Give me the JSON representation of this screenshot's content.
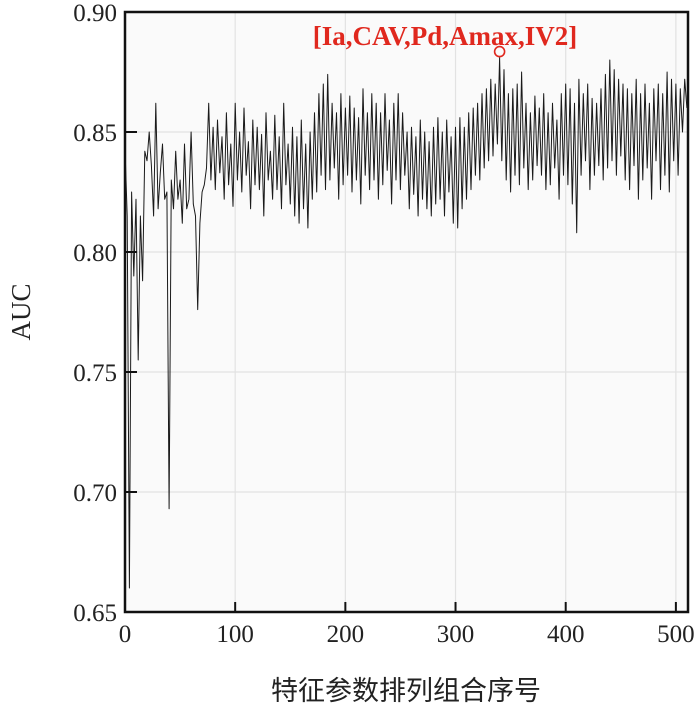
{
  "chart_data": {
    "type": "line",
    "title": "",
    "xlabel": "特征参数排列组合序号",
    "ylabel": "AUC",
    "xlim": [
      0,
      511
    ],
    "ylim": [
      0.65,
      0.9
    ],
    "xticks": [
      0,
      100,
      200,
      300,
      400,
      500
    ],
    "yticks": [
      0.65,
      0.7,
      0.75,
      0.8,
      0.85,
      0.9
    ],
    "ytick_labels": [
      "0.65",
      "0.70",
      "0.75",
      "0.80",
      "0.85",
      "0.90"
    ],
    "grid": true,
    "line_color": "#1a1a1a",
    "annotation": {
      "text": "[Ia,CAV,Pd,Amax,IV2]",
      "x": 340,
      "y": 0.881,
      "color": "#e0281e"
    },
    "series": [
      {
        "name": "AUC",
        "x_start": 0,
        "x_step": 2,
        "values": [
          0.843,
          0.815,
          0.66,
          0.825,
          0.79,
          0.822,
          0.755,
          0.815,
          0.788,
          0.842,
          0.838,
          0.85,
          0.836,
          0.815,
          0.862,
          0.818,
          0.833,
          0.845,
          0.822,
          0.825,
          0.693,
          0.83,
          0.818,
          0.842,
          0.822,
          0.83,
          0.812,
          0.845,
          0.818,
          0.822,
          0.85,
          0.82,
          0.815,
          0.776,
          0.812,
          0.825,
          0.828,
          0.835,
          0.862,
          0.83,
          0.852,
          0.826,
          0.855,
          0.833,
          0.848,
          0.822,
          0.858,
          0.828,
          0.845,
          0.819,
          0.862,
          0.83,
          0.85,
          0.825,
          0.86,
          0.832,
          0.846,
          0.818,
          0.855,
          0.828,
          0.852,
          0.826,
          0.849,
          0.815,
          0.858,
          0.83,
          0.842,
          0.822,
          0.857,
          0.826,
          0.848,
          0.818,
          0.862,
          0.828,
          0.845,
          0.82,
          0.852,
          0.815,
          0.848,
          0.812,
          0.855,
          0.818,
          0.845,
          0.81,
          0.85,
          0.822,
          0.858,
          0.825,
          0.866,
          0.832,
          0.87,
          0.826,
          0.874,
          0.83,
          0.862,
          0.835,
          0.858,
          0.822,
          0.866,
          0.828,
          0.86,
          0.832,
          0.865,
          0.825,
          0.86,
          0.83,
          0.856,
          0.82,
          0.868,
          0.832,
          0.858,
          0.826,
          0.866,
          0.83,
          0.862,
          0.822,
          0.858,
          0.828,
          0.866,
          0.834,
          0.855,
          0.82,
          0.862,
          0.83,
          0.866,
          0.826,
          0.858,
          0.832,
          0.85,
          0.818,
          0.852,
          0.824,
          0.848,
          0.815,
          0.855,
          0.822,
          0.85,
          0.818,
          0.846,
          0.815,
          0.852,
          0.82,
          0.856,
          0.822,
          0.85,
          0.815,
          0.855,
          0.825,
          0.848,
          0.812,
          0.852,
          0.81,
          0.856,
          0.818,
          0.852,
          0.822,
          0.858,
          0.826,
          0.86,
          0.832,
          0.862,
          0.83,
          0.866,
          0.835,
          0.868,
          0.838,
          0.872,
          0.84,
          0.87,
          0.845,
          0.881,
          0.838,
          0.876,
          0.83,
          0.866,
          0.825,
          0.868,
          0.832,
          0.87,
          0.828,
          0.875,
          0.835,
          0.862,
          0.826,
          0.858,
          0.83,
          0.865,
          0.836,
          0.86,
          0.832,
          0.866,
          0.826,
          0.858,
          0.828,
          0.862,
          0.835,
          0.855,
          0.822,
          0.866,
          0.832,
          0.87,
          0.828,
          0.868,
          0.82,
          0.862,
          0.808,
          0.872,
          0.832,
          0.866,
          0.838,
          0.87,
          0.826,
          0.864,
          0.832,
          0.862,
          0.836,
          0.868,
          0.83,
          0.874,
          0.835,
          0.88,
          0.838,
          0.876,
          0.832,
          0.872,
          0.84,
          0.87,
          0.83,
          0.868,
          0.826,
          0.866,
          0.836,
          0.872,
          0.822,
          0.866,
          0.83,
          0.87,
          0.835,
          0.862,
          0.822,
          0.868,
          0.838,
          0.87,
          0.826,
          0.866,
          0.832,
          0.875,
          0.825,
          0.872,
          0.838,
          0.87,
          0.832,
          0.868,
          0.85,
          0.872,
          0.86
        ]
      }
    ]
  }
}
